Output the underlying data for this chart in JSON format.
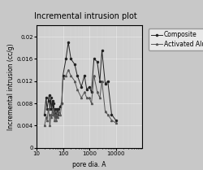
{
  "title": "Incremental intrusion plot",
  "xlabel": "pore dia. A",
  "ylabel": "Incremental intrusion (cc/g)",
  "xlim": [
    10,
    100000
  ],
  "ylim": [
    0,
    0.022
  ],
  "yticks": [
    0,
    0.004,
    0.008,
    0.012,
    0.016,
    0.02
  ],
  "xticks": [
    10,
    100,
    1000,
    10000
  ],
  "bg_color": "#c8c8c8",
  "plot_bg_color": "#d0d0d0",
  "legend": [
    "Composite",
    "Activated Alumina"
  ],
  "composite_x": [
    20,
    23,
    25,
    28,
    30,
    32,
    35,
    37,
    40,
    42,
    45,
    48,
    50,
    55,
    60,
    65,
    70,
    80,
    90,
    100,
    130,
    160,
    200,
    280,
    350,
    500,
    650,
    800,
    1000,
    1200,
    1500,
    2000,
    2500,
    3000,
    4000,
    5000,
    7000,
    10000
  ],
  "composite_y": [
    0.006,
    0.009,
    0.007,
    0.0085,
    0.0095,
    0.007,
    0.009,
    0.007,
    0.0085,
    0.007,
    0.008,
    0.006,
    0.007,
    0.0055,
    0.007,
    0.006,
    0.007,
    0.0075,
    0.008,
    0.013,
    0.016,
    0.019,
    0.016,
    0.015,
    0.013,
    0.011,
    0.013,
    0.0105,
    0.011,
    0.01,
    0.016,
    0.0155,
    0.012,
    0.0175,
    0.0115,
    0.012,
    0.006,
    0.005
  ],
  "alumina_x": [
    20,
    23,
    25,
    28,
    30,
    32,
    35,
    37,
    40,
    42,
    45,
    48,
    50,
    55,
    60,
    65,
    70,
    80,
    90,
    100,
    130,
    160,
    200,
    280,
    350,
    500,
    650,
    800,
    1000,
    1200,
    1500,
    2000,
    2500,
    3000,
    4000,
    5000,
    7000,
    10000
  ],
  "alumina_y": [
    0.004,
    0.0055,
    0.005,
    0.007,
    0.006,
    0.004,
    0.006,
    0.0055,
    0.007,
    0.006,
    0.0065,
    0.005,
    0.006,
    0.005,
    0.006,
    0.0055,
    0.0065,
    0.006,
    0.008,
    0.0125,
    0.013,
    0.014,
    0.013,
    0.012,
    0.0105,
    0.009,
    0.01,
    0.009,
    0.009,
    0.008,
    0.013,
    0.01,
    0.009,
    0.012,
    0.0065,
    0.006,
    0.005,
    0.0045
  ],
  "line_color_composite": "#222222",
  "line_color_alumina": "#555555",
  "title_fontsize": 7,
  "label_fontsize": 5.5,
  "tick_fontsize": 5,
  "legend_fontsize": 5.5
}
